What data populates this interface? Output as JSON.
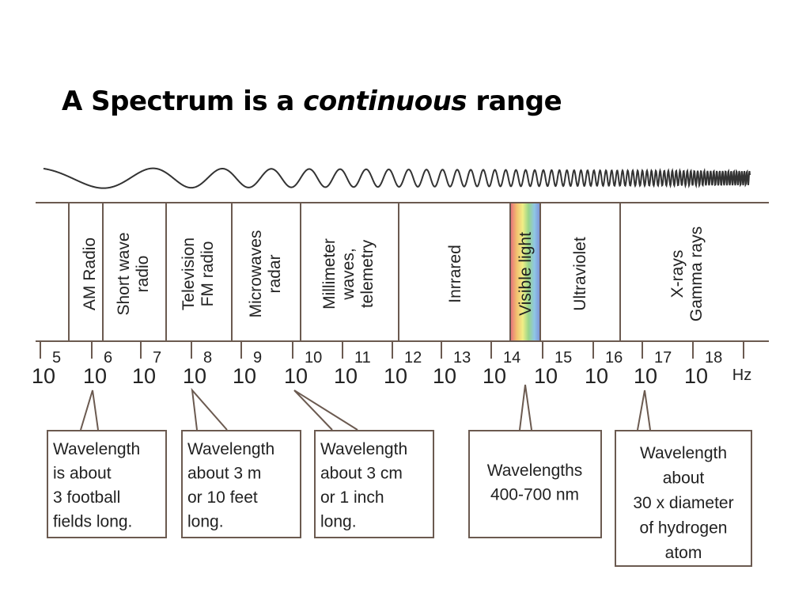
{
  "title": {
    "before": "A Spectrum is a ",
    "emphasis": "continuous",
    "after": " range"
  },
  "bands": [
    {
      "lines": [
        "AM Radio"
      ]
    },
    {
      "lines": [
        "Short wave",
        "radio"
      ]
    },
    {
      "lines": [
        "Television",
        "FM radio"
      ]
    },
    {
      "lines": [
        "Microwaves",
        "radar"
      ]
    },
    {
      "lines": [
        "Millimeter",
        "waves,",
        "telemetry"
      ]
    },
    {
      "lines": [
        "Inrrared"
      ]
    },
    {
      "lines": [
        "Visible light"
      ]
    },
    {
      "lines": [
        "Ultraviolet"
      ]
    },
    {
      "lines": [
        "X-rays",
        "Gamma rays"
      ]
    }
  ],
  "scale": {
    "base": "10",
    "exponents": [
      "5",
      "6",
      "7",
      "8",
      "9",
      "10",
      "11",
      "12",
      "13",
      "14",
      "15",
      "16",
      "17",
      "18"
    ],
    "unit": "Hz"
  },
  "callouts": [
    {
      "lines": [
        "Wavelength",
        "is about",
        "3 football",
        "fields long."
      ]
    },
    {
      "lines": [
        "Wavelength",
        "about 3 m",
        "or 10 feet",
        "long."
      ]
    },
    {
      "lines": [
        "Wavelength",
        "about 3 cm",
        "or 1 inch",
        "long."
      ]
    },
    {
      "lines": [
        "Wavelengths",
        "400-700 nm"
      ]
    },
    {
      "lines": [
        "Wavelength",
        "about",
        "30 x diameter",
        "of hydrogen",
        "atom"
      ]
    }
  ],
  "colors": {
    "line": "#6b5a50",
    "text": "#222222",
    "spectrum": [
      "#e8767a",
      "#f2c26f",
      "#f1ee86",
      "#98d58a",
      "#8fc6e6",
      "#7d8fd8"
    ]
  }
}
